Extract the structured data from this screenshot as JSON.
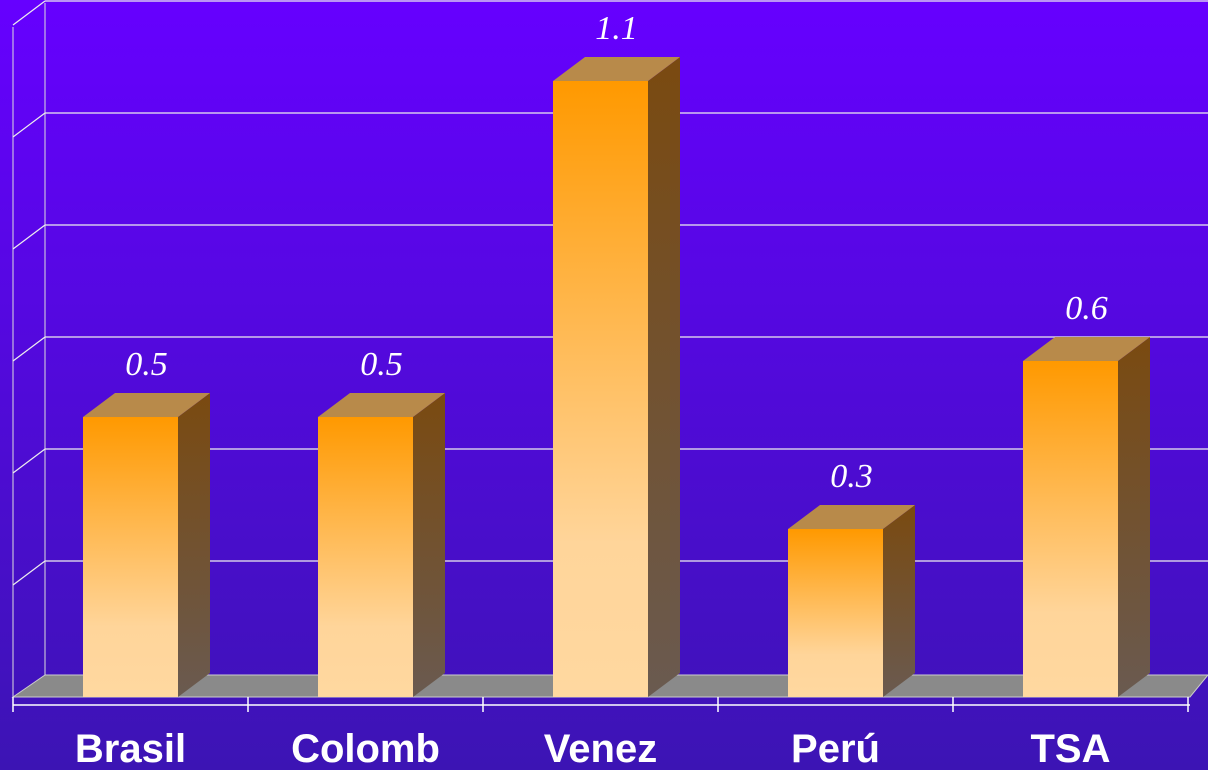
{
  "chart_data": {
    "type": "bar3d",
    "categories": [
      "Brasil",
      "Colomb",
      "Venez",
      "Perú",
      "TSA"
    ],
    "values": [
      0.5,
      0.5,
      1.1,
      0.3,
      0.6
    ],
    "color": "#ff9900",
    "ylim": [
      0,
      1.2
    ],
    "yticks": [
      0,
      0.2,
      0.4,
      0.6,
      0.8,
      1.0,
      1.2
    ],
    "grid": true
  }
}
